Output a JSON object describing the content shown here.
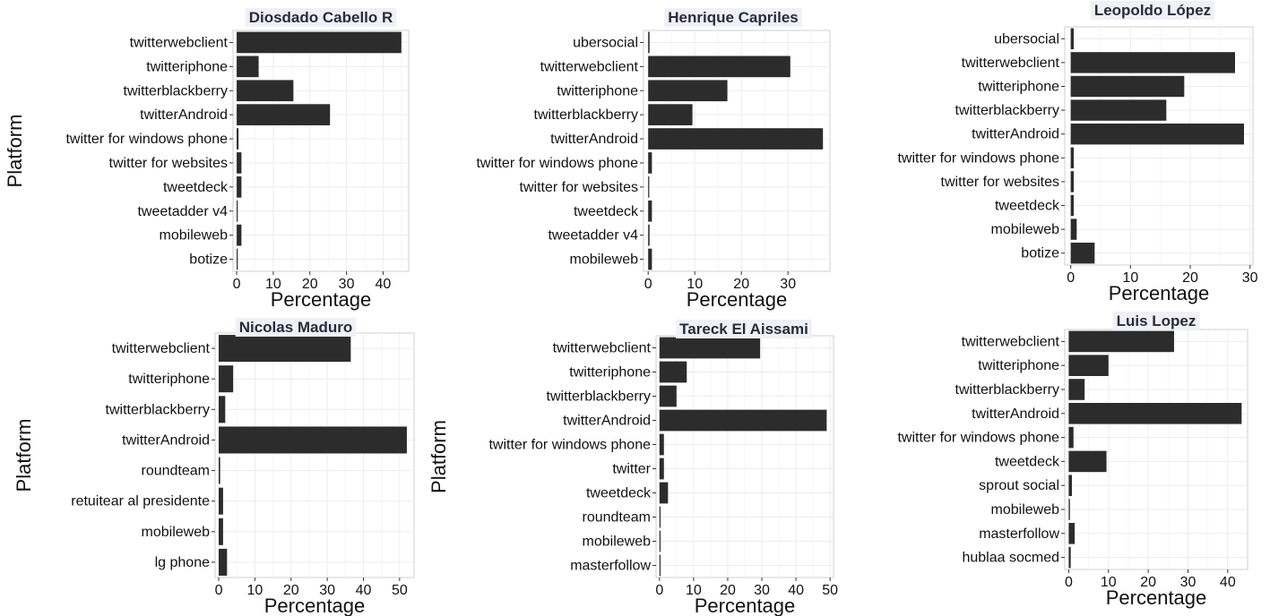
{
  "chart_data": [
    {
      "type": "bar",
      "orientation": "horizontal",
      "title": "Diosdado Cabello R",
      "xlabel": "Percentage",
      "ylabel": "Platform",
      "categories": [
        "twitterwebclient",
        "twitteriphone",
        "twitterblackberry",
        "twitterAndroid",
        "twitter for windows phone",
        "twitter for websites",
        "tweetdeck",
        "tweetadder v4",
        "mobileweb",
        "botize"
      ],
      "values": [
        45,
        6,
        15.5,
        25.5,
        0.5,
        1.3,
        1.3,
        0.3,
        1.3,
        0.3
      ],
      "xlim": [
        -1,
        47
      ],
      "xticks": [
        "0",
        "10",
        "20",
        "30",
        "40"
      ],
      "grid": true
    },
    {
      "type": "bar",
      "orientation": "horizontal",
      "title": "Henrique Capriles",
      "xlabel": "Percentage",
      "ylabel": "",
      "categories": [
        "ubersocial",
        "twitterwebclient",
        "twitteriphone",
        "twitterblackberry",
        "twitterAndroid",
        "twitter for windows phone",
        "twitter for websites",
        "tweetdeck",
        "tweetadder v4",
        "mobileweb"
      ],
      "values": [
        0.3,
        30.5,
        17,
        9.5,
        37.5,
        0.8,
        0.2,
        0.8,
        0.3,
        0.8
      ],
      "xlim": [
        -1,
        39
      ],
      "xticks": [
        "0",
        "10",
        "20",
        "30"
      ],
      "grid": true
    },
    {
      "type": "bar",
      "orientation": "horizontal",
      "title": "Leopoldo López",
      "xlabel": "Percentage",
      "ylabel": "",
      "categories": [
        "ubersocial",
        "twitterwebclient",
        "twitteriphone",
        "twitterblackberry",
        "twitterAndroid",
        "twitter for windows phone",
        "twitter for websites",
        "tweetdeck",
        "mobileweb",
        "botize"
      ],
      "values": [
        0.5,
        27.5,
        19,
        16,
        29,
        0.5,
        0.5,
        0.5,
        1,
        4
      ],
      "xlim": [
        -1,
        30.5
      ],
      "xticks": [
        "0",
        "10",
        "20",
        "30"
      ],
      "grid": true
    },
    {
      "type": "bar",
      "orientation": "horizontal",
      "title": "Nicolas Maduro",
      "xlabel": "Percentage",
      "ylabel": "Platform",
      "categories": [
        "twitterwebclient",
        "twitteriphone",
        "twitterblackberry",
        "twitterAndroid",
        "roundteam",
        "retuitear al presidente",
        "mobileweb",
        "lg phone"
      ],
      "values": [
        36.5,
        4,
        1.8,
        52,
        0.4,
        1.2,
        1.2,
        2.3
      ],
      "xlim": [
        -1,
        54
      ],
      "xticks": [
        "0",
        "10",
        "20",
        "30",
        "40",
        "50"
      ],
      "grid": true
    },
    {
      "type": "bar",
      "orientation": "horizontal",
      "title": "Tareck El Aissami",
      "xlabel": "Percentage",
      "ylabel": "Platform",
      "categories": [
        "twitterwebclient",
        "twitteriphone",
        "twitterblackberry",
        "twitterAndroid",
        "twitter for windows phone",
        "twitter",
        "tweetdeck",
        "roundteam",
        "mobileweb",
        "masterfollow"
      ],
      "values": [
        29.5,
        8,
        5,
        49,
        1.3,
        1.3,
        2.5,
        0.3,
        0.3,
        0.2
      ],
      "xlim": [
        -1,
        51
      ],
      "xticks": [
        "0",
        "10",
        "20",
        "30",
        "40",
        "50"
      ],
      "grid": true
    },
    {
      "type": "bar",
      "orientation": "horizontal",
      "title": "Luis Lopez",
      "xlabel": "Percentage",
      "ylabel": "",
      "categories": [
        "twitterwebclient",
        "twitteriphone",
        "twitterblackberry",
        "twitterAndroid",
        "twitter for windows phone",
        "tweetdeck",
        "sprout social",
        "mobileweb",
        "masterfollow",
        "hublaa socmed"
      ],
      "values": [
        26.5,
        10,
        4,
        43.5,
        1.2,
        9.5,
        0.8,
        0.3,
        1.5,
        0.5
      ],
      "xlim": [
        -1,
        45
      ],
      "xticks": [
        "0",
        "10",
        "20",
        "30",
        "40"
      ],
      "grid": true
    }
  ]
}
